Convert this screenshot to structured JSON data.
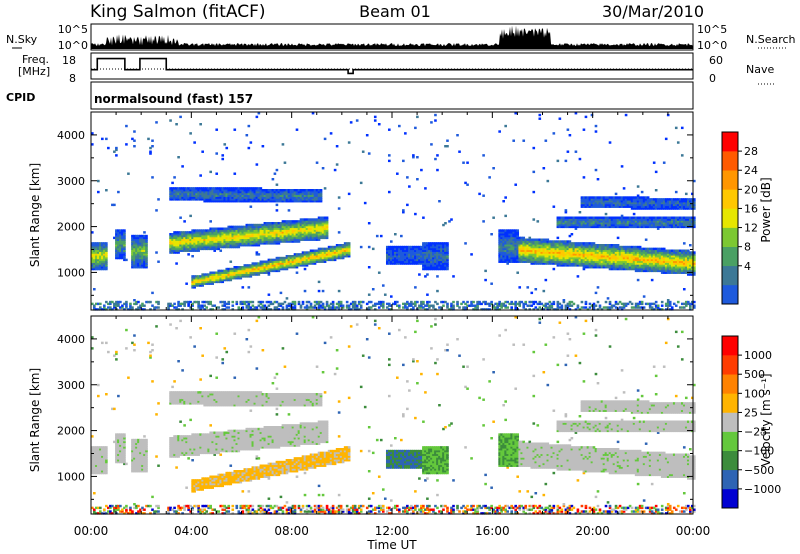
{
  "header": {
    "station": "King Salmon (fitACF)",
    "beam": "Beam 01",
    "date": "30/Mar/2010"
  },
  "top_panels": {
    "nsky_label": "N.Sky",
    "nsearch_label": "N.Search",
    "noise_ticks": [
      "10^5",
      "10^0"
    ],
    "freq_label_1": "Freq.",
    "freq_label_2": "[MHz]",
    "freq_ticks": [
      "18",
      "8"
    ],
    "nave_label": "Nave",
    "nave_ticks": [
      "60",
      "0"
    ],
    "cpid_label": "CPID",
    "cpid_text": "normalsound (fast) 157"
  },
  "colors": {
    "power": [
      "#0030ff",
      "#1e5adc",
      "#3c7896",
      "#4aa064",
      "#7cc832",
      "#e6e600",
      "#ffc800",
      "#ff9600",
      "#ff5a00",
      "#ff0000"
    ],
    "velocity": [
      "#0000d2",
      "#2e64b4",
      "#3c8c3c",
      "#64c83c",
      "#bebebe",
      "#ffb400",
      "#ff8200",
      "#ff3c00",
      "#ff0000"
    ]
  },
  "chart_data": [
    {
      "type": "heatmap",
      "title": "Power",
      "ylabel": "Slant Range [km]",
      "ylim": [
        180,
        4500
      ],
      "yticks": [
        "4000",
        "3000",
        "2000",
        "1000"
      ],
      "colorbar_label": "Power [dB]",
      "colorbar_ticks": [
        "28",
        "24",
        "20",
        "16",
        "12",
        "8",
        "4"
      ],
      "clim": [
        0,
        32
      ]
    },
    {
      "type": "heatmap",
      "title": "Velocity",
      "ylabel": "Slant Range [km]",
      "ylim": [
        180,
        4500
      ],
      "yticks": [
        "4000",
        "3000",
        "2000",
        "1000"
      ],
      "colorbar_label": "Velocity [m s⁻¹]",
      "colorbar_ticks": [
        "1000",
        "500",
        "100",
        "25",
        "−25",
        "−100",
        "−500",
        "−1000"
      ],
      "xlabel": "Time UT",
      "xticks": [
        "00:00",
        "04:00",
        "08:00",
        "12:00",
        "16:00",
        "20:00",
        "00:00"
      ]
    }
  ]
}
